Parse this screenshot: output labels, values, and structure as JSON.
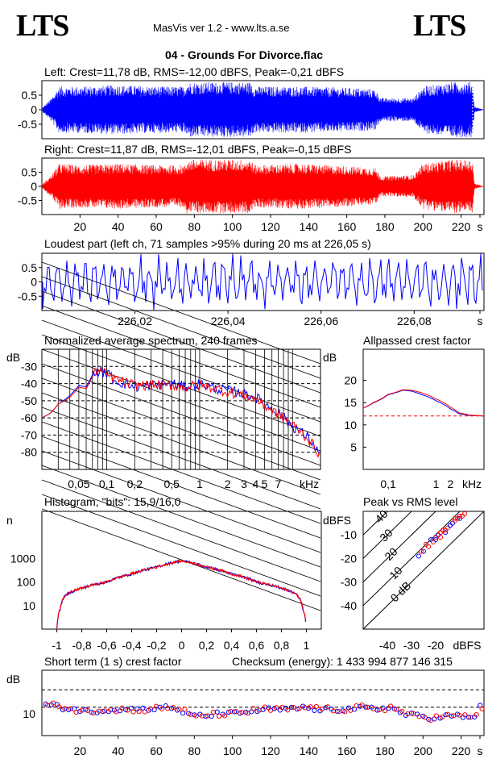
{
  "header": {
    "logo_left": "LTS",
    "logo_right": "LTS",
    "app": "MasVis ver 1.2 - www.lts.a.se",
    "track": "04 - Grounds For Divorce.flac"
  },
  "panels": {
    "left_title": "Left: Crest=11,78 dB, RMS=-12,00 dBFS, Peak=-0,21 dBFS",
    "right_title": "Right: Crest=11,87 dB, RMS=-12,01 dBFS, Peak=-0,15 dBFS",
    "loudest_title": "Loudest part (left  ch, 71 samples >95% during 20 ms at 226,05 s)",
    "spectrum_title": "Normalized average spectrum, 240 frames",
    "allpass_title": "Allpassed crest factor",
    "histogram_title": "Histogram, \"bits\": 15,9/16,0",
    "peakrms_title": "Peak vs RMS level",
    "shortterm_title": "Short term (1 s) crest factor",
    "checksum": "Checksum (energy):  1 433 994 877 146 315"
  },
  "colors": {
    "left": "#0000ff",
    "right": "#ff0000",
    "grid": "#000000"
  },
  "chart_data": [
    {
      "type": "area",
      "name": "left-waveform",
      "yticks": [
        "0.5",
        "0",
        "-0.5"
      ],
      "ylim": [
        -1,
        1
      ],
      "xlim": [
        0,
        232
      ],
      "envelope_time_s": [
        0,
        5,
        9,
        20,
        40,
        60,
        75,
        76,
        110,
        111,
        135,
        165,
        175,
        178,
        195,
        200,
        215,
        226,
        227,
        232
      ],
      "envelope_peak": [
        0.05,
        0.4,
        0.8,
        0.8,
        0.85,
        0.8,
        0.8,
        0.95,
        0.95,
        0.8,
        0.8,
        0.75,
        0.7,
        0.4,
        0.4,
        0.8,
        0.95,
        0.95,
        0.1,
        0.0
      ],
      "marker_at_s": 226.05
    },
    {
      "type": "area",
      "name": "right-waveform",
      "yticks": [
        "0.5",
        "0",
        "-0.5"
      ],
      "ylim": [
        -1,
        1
      ],
      "xlim": [
        0,
        232
      ],
      "xticks": [
        "20",
        "40",
        "60",
        "80",
        "100",
        "120",
        "140",
        "160",
        "180",
        "200",
        "220",
        "s"
      ],
      "envelope_time_s": [
        0,
        5,
        9,
        20,
        40,
        60,
        75,
        76,
        110,
        111,
        135,
        165,
        175,
        178,
        195,
        200,
        215,
        226,
        227,
        232
      ],
      "envelope_peak": [
        0.05,
        0.4,
        0.8,
        0.75,
        0.8,
        0.75,
        0.75,
        0.95,
        0.95,
        0.75,
        0.8,
        0.7,
        0.65,
        0.35,
        0.4,
        0.8,
        0.95,
        0.95,
        0.1,
        0.0
      ]
    },
    {
      "type": "line",
      "name": "loudest-part",
      "yticks": [
        "0.5",
        "0",
        "-0.5"
      ],
      "ylim": [
        -1,
        1
      ],
      "xlim": [
        226.0,
        226.095
      ],
      "xticks": [
        "226,02",
        "226,04",
        "226,06",
        "226,08",
        "s"
      ],
      "xtick_values": [
        226.02,
        226.04,
        226.06,
        226.08
      ]
    },
    {
      "type": "line",
      "name": "normalized-spectrum",
      "ylabel": "dB",
      "yticks": [
        "-30",
        "-40",
        "-50",
        "-60",
        "-70",
        "-80"
      ],
      "ylim": [
        -90,
        -20
      ],
      "xlabel": "kHz",
      "xticks": [
        "0,05",
        "0,1",
        "0,2",
        "0,5",
        "1",
        "2",
        "3",
        "4",
        "5",
        "7"
      ],
      "xtick_values_khz": [
        0.05,
        0.1,
        0.2,
        0.5,
        1,
        2,
        3,
        4,
        5,
        7
      ],
      "xlim_khz": [
        0.02,
        20
      ],
      "freq_khz": [
        0.02,
        0.025,
        0.03,
        0.04,
        0.05,
        0.06,
        0.07,
        0.08,
        0.1,
        0.12,
        0.15,
        0.2,
        0.3,
        0.5,
        0.7,
        1,
        1.5,
        2,
        3,
        4,
        5,
        7,
        10,
        15,
        20
      ],
      "left_db": [
        -60,
        -57,
        -52,
        -47,
        -41,
        -42,
        -35,
        -33,
        -34,
        -38,
        -40,
        -42,
        -41,
        -40,
        -42,
        -40,
        -43,
        -44,
        -46,
        -48,
        -52,
        -57,
        -65,
        -72,
        -82
      ],
      "right_db": [
        -60,
        -57,
        -52,
        -48,
        -42,
        -43,
        -36,
        -32,
        -35,
        -37,
        -39,
        -41,
        -41,
        -41,
        -42,
        -41,
        -43,
        -45,
        -47,
        -49,
        -53,
        -58,
        -64,
        -73,
        -82
      ]
    },
    {
      "type": "line",
      "name": "allpassed-crest-factor",
      "ylabel": "dB",
      "yticks": [
        "20",
        "15",
        "10",
        "5"
      ],
      "ylim": [
        0,
        27
      ],
      "xlabel": "kHz",
      "xticks": [
        "0,1",
        "1",
        "2"
      ],
      "xtick_values_khz": [
        0.1,
        1,
        2
      ],
      "xlim_khz": [
        0.03,
        10
      ],
      "freq_khz": [
        0.03,
        0.05,
        0.1,
        0.2,
        0.3,
        0.5,
        1,
        2,
        3,
        5,
        10
      ],
      "left_db": [
        13.8,
        15.0,
        16.8,
        17.8,
        17.6,
        16.8,
        15.4,
        13.6,
        12.5,
        12.1,
        12.0
      ],
      "right_db": [
        13.8,
        15.1,
        16.9,
        17.9,
        17.8,
        17.2,
        15.8,
        14.0,
        12.7,
        12.2,
        12.0
      ],
      "reference_db": 12
    },
    {
      "type": "area",
      "name": "histogram",
      "ylabel": "n",
      "yticks": [
        "1000",
        "100",
        "10"
      ],
      "ylim_log": [
        1,
        100000
      ],
      "xticks": [
        "-1",
        "-0,8",
        "-0,6",
        "-0,4",
        "-0,2",
        "0",
        "0,2",
        "0,4",
        "0,6",
        "0,8",
        "1"
      ],
      "xlim": [
        -1.12,
        1.12
      ],
      "x": [
        -1.0,
        -0.97,
        -0.95,
        -0.9,
        -0.8,
        -0.6,
        -0.4,
        -0.2,
        0,
        0.2,
        0.4,
        0.6,
        0.8,
        0.9,
        0.95,
        0.97,
        1.0
      ],
      "counts": [
        1,
        8,
        20,
        35,
        55,
        100,
        220,
        430,
        800,
        430,
        220,
        100,
        55,
        35,
        20,
        8,
        1
      ]
    },
    {
      "type": "scatter",
      "name": "peak-vs-rms",
      "ylabel": "dBFS",
      "yticks": [
        "-10",
        "-20",
        "-30",
        "-40"
      ],
      "ylim": [
        -50,
        0
      ],
      "xlabel": "dBFS",
      "xticks": [
        "-40",
        "-30",
        "-20"
      ],
      "xlim": [
        -50,
        0
      ],
      "diagonals": [
        "40",
        "30",
        "20",
        "10",
        "0 dB"
      ],
      "rms_db": [
        -25,
        -24,
        -23,
        -22,
        -21,
        -20,
        -19,
        -18,
        -17,
        -16,
        -15,
        -14,
        -13,
        -12,
        -11,
        -10,
        -9,
        -8,
        -20,
        -18,
        -16,
        -14,
        -12,
        -10,
        -27,
        -26
      ],
      "peak_db": [
        -17,
        -14,
        -15,
        -12,
        -13,
        -11,
        -10,
        -11,
        -8,
        -9,
        -7,
        -6,
        -5,
        -4,
        -3,
        -3,
        -2,
        -1,
        -12,
        -9,
        -8,
        -6,
        -3,
        -2,
        -19,
        -17
      ]
    },
    {
      "type": "scatter",
      "name": "short-term-crest",
      "ylabel": "dB",
      "yticks": [
        "10"
      ],
      "ylim": [
        0,
        30
      ],
      "xticks": [
        "20",
        "40",
        "60",
        "80",
        "100",
        "120",
        "140",
        "160",
        "180",
        "200",
        "220",
        "s"
      ],
      "xlim": [
        0,
        232
      ],
      "reference_lines_db": [
        21,
        13
      ],
      "time_s": [
        5,
        15,
        25,
        35,
        45,
        55,
        65,
        72,
        78,
        85,
        92,
        100,
        108,
        115,
        122,
        130,
        138,
        145,
        152,
        160,
        168,
        175,
        182,
        190,
        197,
        205,
        212,
        220,
        226,
        230
      ],
      "crest_db": [
        14,
        12,
        11,
        12,
        12,
        12,
        13,
        12,
        9,
        9,
        10,
        10,
        11,
        12,
        12,
        12,
        13,
        12,
        12,
        12,
        13,
        12,
        13,
        10,
        9,
        8,
        9,
        9,
        8,
        13
      ]
    }
  ]
}
